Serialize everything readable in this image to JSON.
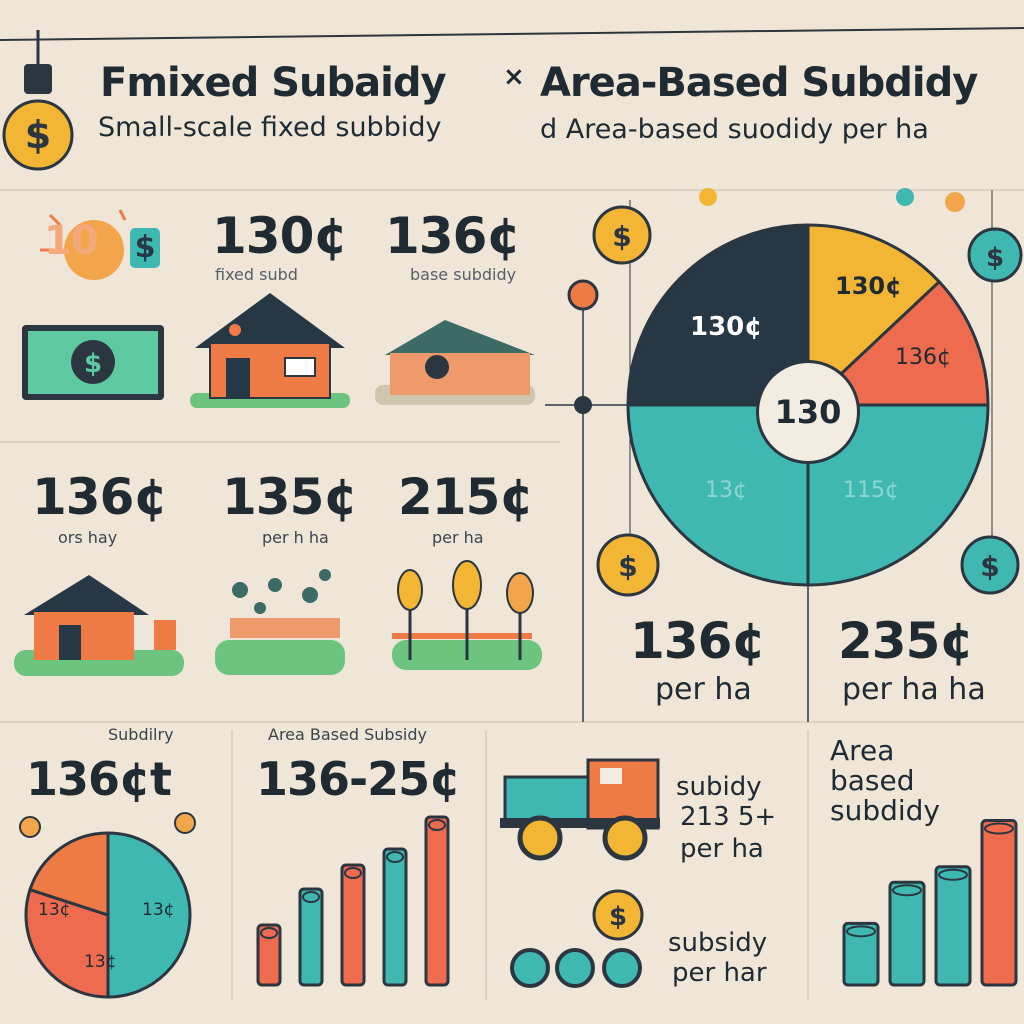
{
  "header": {
    "title_left": "Fmixed Subaidy",
    "title_sep": "×",
    "title_right": "Area-Based Subdidy",
    "subtitle_left": "Small-scale fixed subbidy",
    "subtitle_right": "d Area-based suodidy per ha"
  },
  "top_row": {
    "icon_label": "10",
    "icon_currency": "$",
    "card1": {
      "value": "130¢",
      "caption": "fixed subd"
    },
    "card2": {
      "value": "136¢",
      "caption": "base subdidy"
    }
  },
  "mid_row": {
    "card1": {
      "value": "136¢",
      "caption": "ors hay"
    },
    "card2": {
      "value": "135¢",
      "caption": "per h ha"
    },
    "card3": {
      "value": "215¢",
      "caption": "per ha"
    }
  },
  "right_panel": {
    "pie_center": "130",
    "pie_labels": [
      "130¢",
      "130¢",
      "136¢",
      "13¢",
      "115¢"
    ],
    "bottom_left": {
      "value": "136¢",
      "caption": "per ha"
    },
    "bottom_right": {
      "value": "235¢",
      "caption": "per ha ha"
    }
  },
  "bottom_row": {
    "panel1": {
      "title": "Subdilry",
      "value": "136¢t",
      "pie_label_a": "13¢",
      "pie_label_b": "13¢",
      "pie_label_c": "13¢"
    },
    "panel2": {
      "title": "Area Based Subsidy",
      "value": "136-25¢"
    },
    "panel3": {
      "text1": "subidy",
      "text2": "213 5+",
      "text3": "per ha",
      "text4": "subsidy",
      "text5": "per har"
    },
    "panel4": {
      "line1": "Area",
      "line2": "based",
      "line3": "subdidy"
    }
  },
  "colors": {
    "background": "#efe6d8",
    "navy": "#263745",
    "teal": "#3fb8b2",
    "orange": "#ee7a45",
    "yellow": "#f2b534",
    "green": "#6cc47e",
    "red": "#ef6b50"
  },
  "chart_data": [
    {
      "type": "pie",
      "labels": [
        "130¢",
        "130¢",
        "136¢",
        "13¢",
        "115¢"
      ],
      "values": [
        25,
        13,
        12,
        25,
        25
      ]
    },
    {
      "type": "bar",
      "values": [
        1.5,
        2.4,
        3.0,
        3.4,
        4.2
      ]
    },
    {
      "type": "bar",
      "values": [
        1.2,
        2.0,
        2.3,
        3.2
      ]
    }
  ]
}
